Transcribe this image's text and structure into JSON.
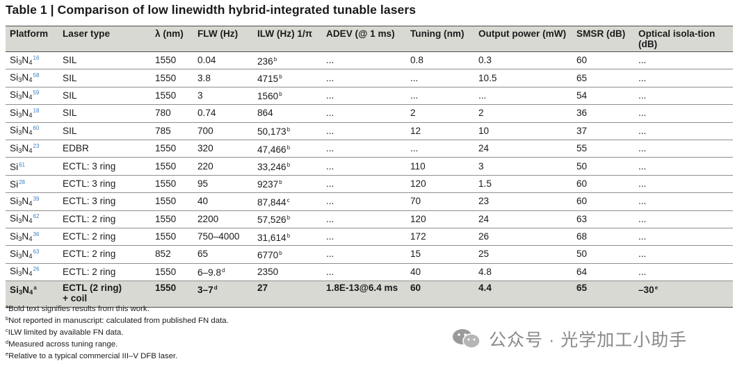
{
  "title": "Table 1 | Comparison of low linewidth hybrid-integrated tunable lasers",
  "columns": [
    {
      "label": "Platform",
      "width": 76
    },
    {
      "label": "Laser type",
      "width": 133
    },
    {
      "label": "λ (nm)",
      "width": 61
    },
    {
      "label": "FLW (Hz)",
      "width": 86
    },
    {
      "label": "ILW (Hz) 1/π",
      "width": 99
    },
    {
      "label": "ADEV (@ 1 ms)",
      "width": 121
    },
    {
      "label": "Tuning (nm)",
      "width": 98
    },
    {
      "label": "Output power (mW)",
      "width": 141
    },
    {
      "label": "SMSR (dB)",
      "width": 89
    },
    {
      "label": "Optical isola-tion (dB)",
      "width": 142
    }
  ],
  "rows": [
    {
      "platform": "Si3N4",
      "ref": "16",
      "laser": "SIL",
      "lambda": "1550",
      "flw": "0.04",
      "ilw": "236",
      "ilw_mark": "b",
      "adev": "...",
      "tuning": "0.8",
      "power": "0.3",
      "smsr": "60",
      "iso": "..."
    },
    {
      "platform": "Si3N4",
      "ref": "58",
      "laser": "SIL",
      "lambda": "1550",
      "flw": "3.8",
      "ilw": "4715",
      "ilw_mark": "b",
      "adev": "...",
      "tuning": "...",
      "power": "10.5",
      "smsr": "65",
      "iso": "..."
    },
    {
      "platform": "Si3N4",
      "ref": "59",
      "laser": "SIL",
      "lambda": "1550",
      "flw": "3",
      "ilw": "1560",
      "ilw_mark": "b",
      "adev": "...",
      "tuning": "...",
      "power": "...",
      "smsr": "54",
      "iso": "..."
    },
    {
      "platform": "Si3N4",
      "ref": "18",
      "laser": "SIL",
      "lambda": "780",
      "flw": "0.74",
      "ilw": "864",
      "ilw_mark": "",
      "adev": "...",
      "tuning": "2",
      "power": "2",
      "smsr": "36",
      "iso": "..."
    },
    {
      "platform": "Si3N4",
      "ref": "60",
      "laser": "SIL",
      "lambda": "785",
      "flw": "700",
      "ilw": "50,173",
      "ilw_mark": "b",
      "adev": "...",
      "tuning": "12",
      "power": "10",
      "smsr": "37",
      "iso": "..."
    },
    {
      "platform": "Si3N4",
      "ref": "23",
      "laser": "EDBR",
      "lambda": "1550",
      "flw": "320",
      "ilw": "47,466",
      "ilw_mark": "b",
      "adev": "...",
      "tuning": "...",
      "power": "24",
      "smsr": "55",
      "iso": "..."
    },
    {
      "platform": "Si",
      "ref": "61",
      "laser": "ECTL: 3 ring",
      "lambda": "1550",
      "flw": "220",
      "ilw": "33,246",
      "ilw_mark": "b",
      "adev": "...",
      "tuning": "110",
      "power": "3",
      "smsr": "50",
      "iso": "..."
    },
    {
      "platform": "Si",
      "ref": "28",
      "laser": "ECTL: 3 ring",
      "lambda": "1550",
      "flw": "95",
      "ilw": "9237",
      "ilw_mark": "b",
      "adev": "...",
      "tuning": "120",
      "power": "1.5",
      "smsr": "60",
      "iso": "..."
    },
    {
      "platform": "Si3N4",
      "ref": "39",
      "laser": "ECTL: 3 ring",
      "lambda": "1550",
      "flw": "40",
      "ilw": "87,844",
      "ilw_mark": "c",
      "adev": "...",
      "tuning": "70",
      "power": "23",
      "smsr": "60",
      "iso": "..."
    },
    {
      "platform": "Si3N4",
      "ref": "62",
      "laser": "ECTL: 2 ring",
      "lambda": "1550",
      "flw": "2200",
      "ilw": "57,526",
      "ilw_mark": "b",
      "adev": "...",
      "tuning": "120",
      "power": "24",
      "smsr": "63",
      "iso": "..."
    },
    {
      "platform": "Si3N4",
      "ref": "36",
      "laser": "ECTL: 2 ring",
      "lambda": "1550",
      "flw": "750–4000",
      "ilw": "31,614",
      "ilw_mark": "b",
      "adev": "...",
      "tuning": "172",
      "power": "26",
      "smsr": "68",
      "iso": "..."
    },
    {
      "platform": "Si3N4",
      "ref": "63",
      "laser": "ECTL: 2 ring",
      "lambda": "852",
      "flw": "65",
      "ilw": "6770",
      "ilw_mark": "b",
      "adev": "...",
      "tuning": "15",
      "power": "25",
      "smsr": "50",
      "iso": "..."
    },
    {
      "platform": "Si3N4",
      "ref": "26",
      "laser": "ECTL: 2 ring",
      "lambda": "1550",
      "flw": "6–9.8",
      "flw_mark": "d",
      "ilw": "2350",
      "ilw_mark": "",
      "adev": "...",
      "tuning": "40",
      "power": "4.8",
      "smsr": "64",
      "iso": "..."
    }
  ],
  "this_work": {
    "platform": "Si3N4",
    "mark": "a",
    "laser_line1": "ECTL (2 ring)",
    "laser_line2": "+ coil",
    "lambda": "1550",
    "flw": "3–7",
    "flw_mark": "d",
    "ilw": "27",
    "adev": "1.8E-13@6.4 ms",
    "tuning": "60",
    "power": "4.4",
    "smsr": "65",
    "iso": "–30",
    "iso_mark": "e"
  },
  "footnotes": [
    {
      "mark": "a",
      "text": "Bold text signifies results from this work."
    },
    {
      "mark": "b",
      "text": "Not reported in manuscript: calculated from published FN data."
    },
    {
      "mark": "c",
      "text": "ILW limited by available FN data."
    },
    {
      "mark": "d",
      "text": "Measured across tuning range."
    },
    {
      "mark": "e",
      "text": "Relative to a typical commercial III–V DFB laser."
    }
  ],
  "watermark": "公众号 · 光学加工小助手",
  "colors": {
    "header_bg": "#d9d9d4",
    "ref_blue": "#3f7fbf",
    "rule": "#4a4a4a"
  }
}
